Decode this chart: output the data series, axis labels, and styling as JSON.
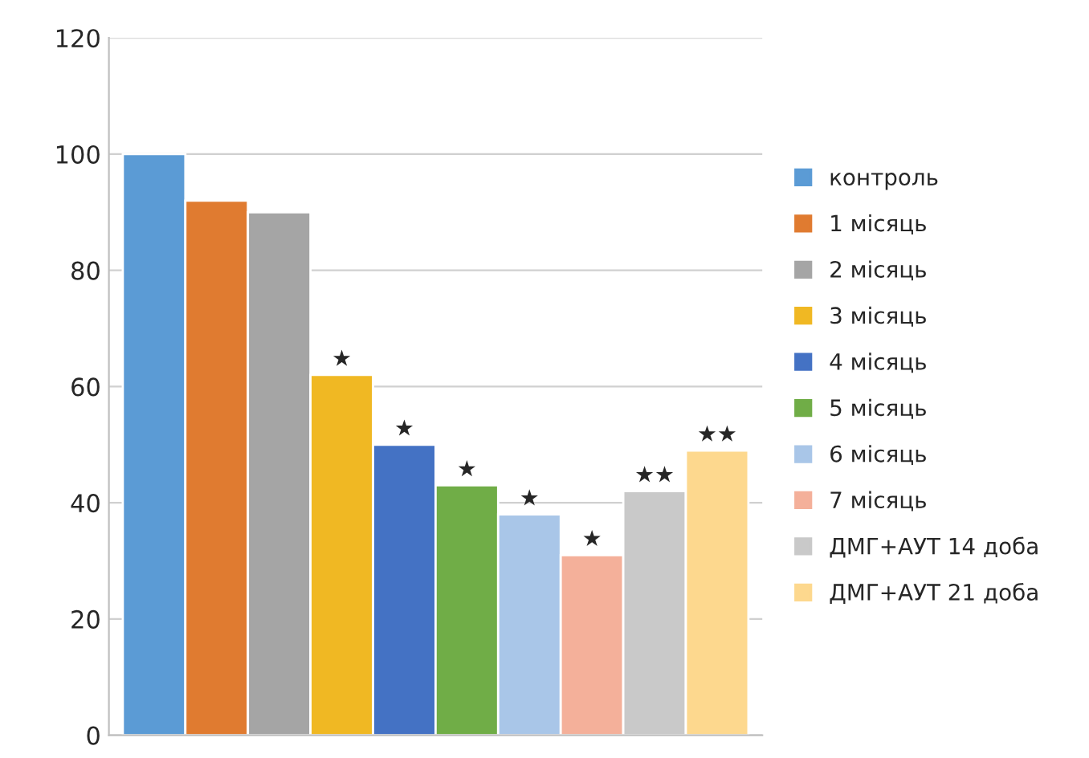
{
  "chart_data": {
    "type": "bar",
    "categories": [
      null
    ],
    "series": [
      {
        "name": "контроль",
        "color": "#5b9bd5",
        "values": [
          100
        ],
        "value_labels": [
          null
        ]
      },
      {
        "name": "1 місяць",
        "color": "#e07b30",
        "values": [
          92
        ],
        "value_labels": [
          null
        ]
      },
      {
        "name": "2 місяць",
        "color": "#a5a5a5",
        "values": [
          90
        ],
        "value_labels": [
          null
        ]
      },
      {
        "name": "3 місяць",
        "color": "#f0b823",
        "values": [
          62
        ],
        "value_labels": [
          "★"
        ]
      },
      {
        "name": "4 місяць",
        "color": "#4472c4",
        "values": [
          50
        ],
        "value_labels": [
          "★"
        ]
      },
      {
        "name": "5 місяць",
        "color": "#70ad47",
        "values": [
          43
        ],
        "value_labels": [
          "★"
        ]
      },
      {
        "name": "6 місяць",
        "color": "#a9c6e8",
        "values": [
          38
        ],
        "value_labels": [
          "★"
        ]
      },
      {
        "name": "7 місяць",
        "color": "#f4b09a",
        "values": [
          31
        ],
        "value_labels": [
          "★"
        ]
      },
      {
        "name": "ДМГ+АУТ 14 доба",
        "color": "#c9c9c9",
        "values": [
          42
        ],
        "value_labels": [
          "★★"
        ]
      },
      {
        "name": "ДМГ+АУТ 21 доба",
        "color": "#fdd88e",
        "values": [
          49
        ],
        "value_labels": [
          "★★"
        ]
      }
    ],
    "ylim": [
      0,
      120
    ],
    "yticks": [
      0,
      20,
      40,
      60,
      80,
      100,
      120
    ],
    "grid": "y",
    "legend": "right"
  }
}
